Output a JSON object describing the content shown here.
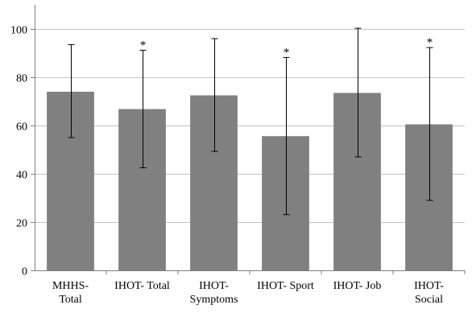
{
  "chart_data": {
    "type": "bar",
    "categories": [
      [
        "MHHS-",
        "Total"
      ],
      [
        "IHOT- Total"
      ],
      [
        "IHOT-",
        "Symptoms"
      ],
      [
        "IHOT- Sport"
      ],
      [
        "IHOT- Job"
      ],
      [
        "IHOT-",
        "Social"
      ]
    ],
    "values": [
      74,
      66.8,
      72.5,
      55.6,
      73.5,
      60.5
    ],
    "error_upper": [
      93.5,
      91.2,
      96,
      88.2,
      100.3,
      92.3
    ],
    "error_lower": [
      55,
      42.5,
      49.3,
      23.1,
      47,
      29
    ],
    "significance": [
      "",
      "*",
      "",
      "*",
      "",
      "*"
    ],
    "y_ticks": [
      "0",
      "20",
      "40",
      "60",
      "80",
      "100"
    ],
    "ylim": [
      0,
      110
    ],
    "grid": true,
    "bar_color": "#808080",
    "title": "",
    "xlabel": "",
    "ylabel": ""
  }
}
